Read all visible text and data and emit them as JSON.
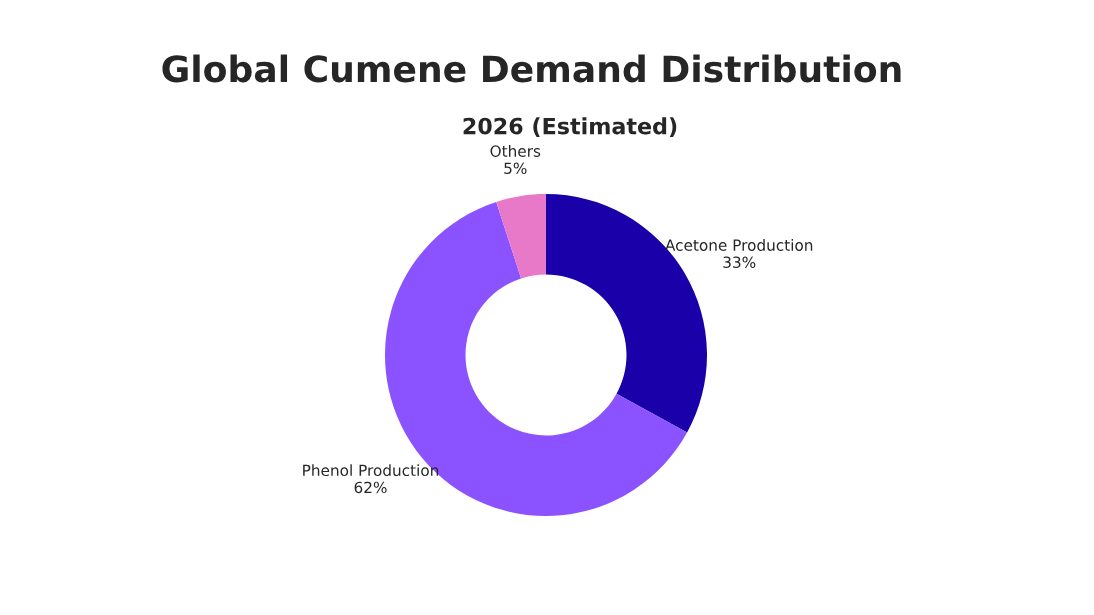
{
  "chart_data": {
    "type": "donut",
    "title": "Global Cumene Demand Distribution",
    "subtitle": "2026 (Estimated)",
    "categories": [
      "Acetone Production",
      "Phenol Production",
      "Others"
    ],
    "values": [
      33,
      62,
      5
    ],
    "value_labels": [
      "33%",
      "62%",
      "5%"
    ],
    "colors": [
      "#1a00a8",
      "#8b52ff",
      "#e879c8"
    ],
    "legend": false
  }
}
